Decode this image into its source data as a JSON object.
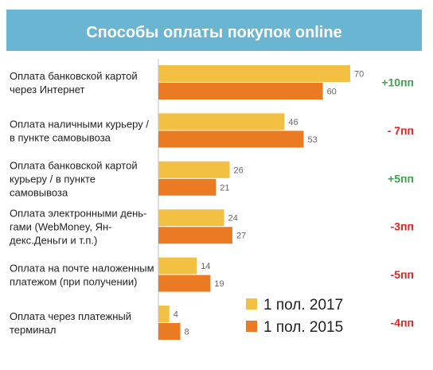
{
  "chart_data": {
    "type": "bar",
    "orientation": "horizontal",
    "title": "Способы оплаты покупок online",
    "categories": [
      [
        "Оплата банковской картой",
        "через Интернет"
      ],
      [
        "Оплата наличными курьеру /",
        "в пункте самовывоза"
      ],
      [
        "Оплата банковской картой",
        "курьеру / в пункте",
        "самовывоза"
      ],
      [
        "Оплата электронными день-",
        "гами (WebMoney, Ян-",
        "декс.Деньги и т.п.)"
      ],
      [
        "Оплата на почте наложенным",
        "платежом (при получении)"
      ],
      [
        "Оплата через платежный",
        "терминал"
      ]
    ],
    "series": [
      {
        "name": "1 пол. 2017",
        "color": "#f2c043",
        "values": [
          70,
          46,
          26,
          24,
          14,
          4
        ]
      },
      {
        "name": "1 пол. 2015",
        "color": "#eb7b22",
        "values": [
          60,
          53,
          21,
          27,
          19,
          8
        ]
      }
    ],
    "changes": [
      "+10пп",
      "- 7пп",
      "+5пп",
      "-3пп",
      "-5пп",
      "-4пп"
    ],
    "change_colors": [
      "#3fa34d",
      "#e02222",
      "#3fa34d",
      "#e02222",
      "#e02222",
      "#e02222"
    ],
    "legend_position": "bottom-right",
    "grid": false,
    "title_bar_color": "#69b5d2",
    "axis_line_color": "#bfbfbf",
    "value_label_color": "#666666",
    "xlim": [
      0,
      72
    ]
  }
}
